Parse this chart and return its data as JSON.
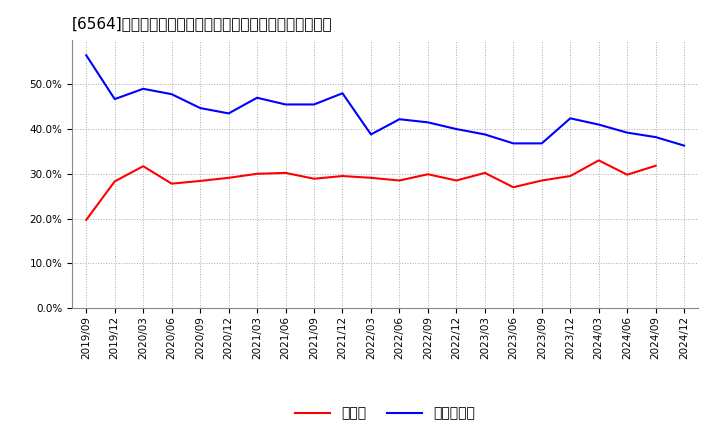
{
  "title": "[6564]　現須金、有利子負債の総資産に対する比率の推移",
  "x_labels": [
    "2019/09",
    "2019/12",
    "2020/03",
    "2020/06",
    "2020/09",
    "2020/12",
    "2021/03",
    "2021/06",
    "2021/09",
    "2021/12",
    "2022/03",
    "2022/06",
    "2022/09",
    "2022/12",
    "2023/03",
    "2023/06",
    "2023/09",
    "2023/12",
    "2024/03",
    "2024/06",
    "2024/09",
    "2024/12"
  ],
  "cash": [
    0.197,
    0.283,
    0.317,
    0.278,
    0.284,
    0.291,
    0.3,
    0.302,
    0.289,
    0.295,
    0.291,
    0.285,
    0.299,
    0.285,
    0.302,
    0.27,
    0.285,
    0.295,
    0.33,
    0.298,
    0.318,
    null
  ],
  "debt": [
    0.565,
    0.467,
    0.49,
    0.478,
    0.447,
    0.435,
    0.47,
    0.455,
    0.455,
    0.48,
    0.388,
    0.422,
    0.415,
    0.4,
    0.388,
    0.368,
    0.368,
    0.424,
    0.41,
    0.392,
    0.382,
    0.363
  ],
  "cash_color": "#ff0000",
  "debt_color": "#0000ff",
  "background_color": "#ffffff",
  "grid_color": "#aaaaaa",
  "ylim": [
    0.0,
    0.6
  ],
  "yticks": [
    0.0,
    0.1,
    0.2,
    0.3,
    0.4,
    0.5
  ],
  "legend_cash": "現須金",
  "legend_debt": "有利子負債",
  "title_fontsize": 11,
  "legend_fontsize": 10,
  "tick_fontsize": 7.5
}
